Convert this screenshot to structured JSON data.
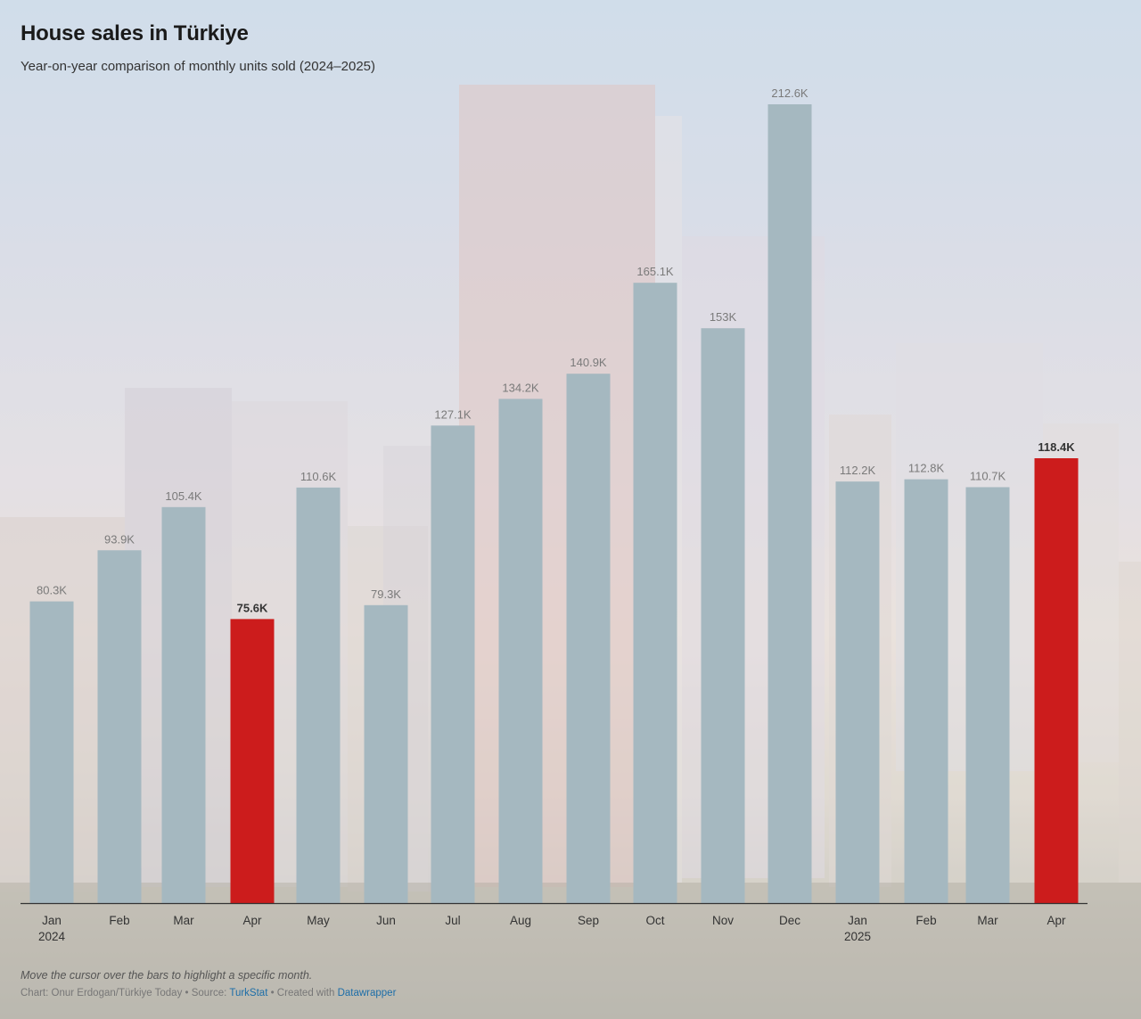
{
  "title": "House sales in Türkiye",
  "subtitle": "Year-on-year comparison of monthly units sold (2024–2025)",
  "note": "Move the cursor over the bars to highlight a specific month.",
  "credits": {
    "prefix": "Chart: Onur Erdogan/Türkiye Today • Source: ",
    "source": "TurkStat",
    "middle": " • Created with ",
    "tool": "Datawrapper"
  },
  "colors": {
    "bar": "#a5b8c0",
    "highlight": "#cc1c1c",
    "label": "#7a7a7a",
    "highlight_label": "#333333",
    "axis": "#333333",
    "tick_label": "#333333"
  },
  "chart_data": {
    "type": "bar",
    "title": "House sales in Türkiye",
    "subtitle": "Year-on-year comparison of monthly units sold (2024–2025)",
    "categories": [
      "Jan",
      "Feb",
      "Mar",
      "Apr",
      "May",
      "Jun",
      "Jul",
      "Aug",
      "Sep",
      "Oct",
      "Nov",
      "Dec",
      "Jan",
      "Feb",
      "Mar",
      "Apr"
    ],
    "year_labels": [
      "2024",
      "",
      "",
      "",
      "",
      "",
      "",
      "",
      "",
      "",
      "",
      "",
      "2025",
      "",
      "",
      ""
    ],
    "values": [
      80300,
      93900,
      105400,
      75600,
      110600,
      79300,
      127100,
      134200,
      140900,
      165100,
      153000,
      212600,
      112200,
      112800,
      110700,
      118400
    ],
    "value_labels": [
      "80.3K",
      "93.9K",
      "105.4K",
      "75.6K",
      "110.6K",
      "79.3K",
      "127.1K",
      "134.2K",
      "140.9K",
      "165.1K",
      "153K",
      "212.6K",
      "112.2K",
      "112.8K",
      "110.7K",
      "118.4K"
    ],
    "highlighted": [
      3,
      15
    ],
    "xlabel": "",
    "ylabel": "",
    "ylim": [
      0,
      212600
    ],
    "grid": false,
    "legend": "none"
  }
}
